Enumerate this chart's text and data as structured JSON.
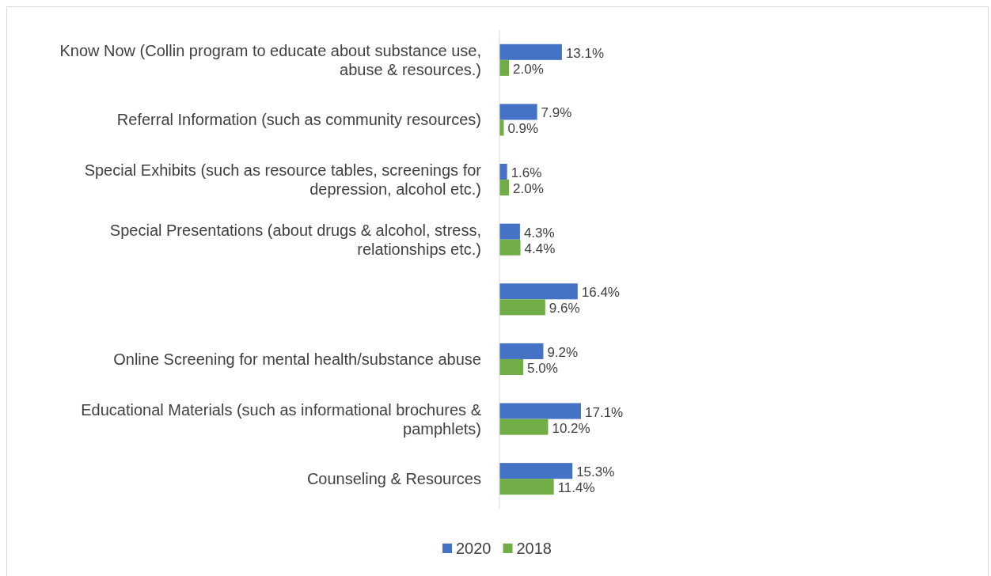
{
  "chart_data": {
    "type": "bar",
    "orientation": "horizontal",
    "categories": [
      "Know Now (Collin program to educate about substance use, abuse & resources.)",
      "Referral Information (such as community resources)",
      "Special Exhibits (such as resource tables, screenings for depression, alcohol etc.)",
      "Special Presentations (about drugs & alcohol, stress, relationships etc.)",
      null,
      "Online Screening for mental health/substance abuse",
      "Educational Materials (such as informational brochures & pamphlets)",
      "Counseling & Resources"
    ],
    "series": [
      {
        "name": "2020",
        "color": "#4472c4",
        "values": [
          13.1,
          7.9,
          1.6,
          4.3,
          16.4,
          9.2,
          17.1,
          15.3
        ],
        "value_labels": [
          "13.1%",
          "7.9%",
          "1.6%",
          "4.3%",
          "16.4%",
          "9.2%",
          "17.1%",
          "15.3%"
        ]
      },
      {
        "name": "2018",
        "color": "#70ad47",
        "values": [
          2.0,
          0.9,
          2.0,
          4.4,
          9.6,
          5.0,
          10.2,
          11.4
        ],
        "value_labels": [
          "2.0%",
          "0.9%",
          "2.0%",
          "4.4%",
          "9.6%",
          "5.0%",
          "10.2%",
          "11.4%"
        ]
      }
    ],
    "legend": "bottom"
  }
}
